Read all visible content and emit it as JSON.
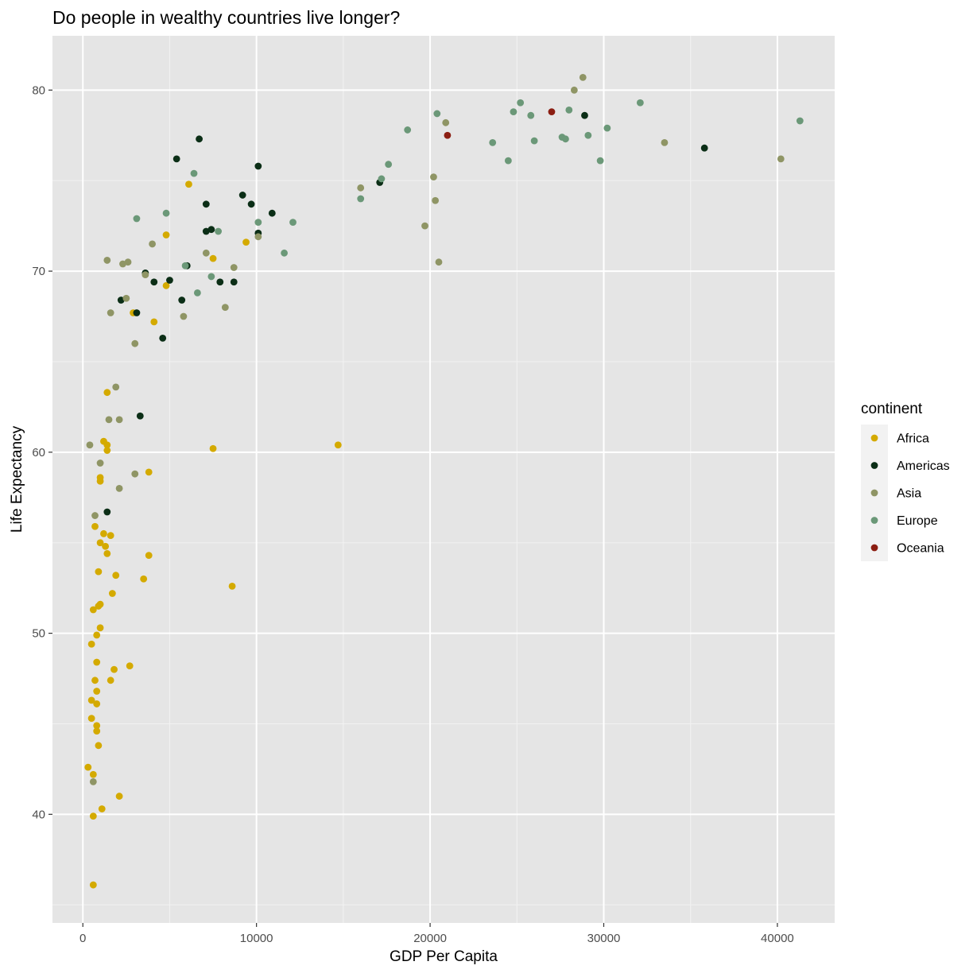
{
  "chart_data": {
    "type": "scatter",
    "title": "Do people in wealthy countries live longer?",
    "xlabel": "GDP Per Capita",
    "ylabel": "Life Expectancy",
    "xlim": [
      -1750,
      43300
    ],
    "ylim": [
      34,
      83
    ],
    "x_ticks": [
      0,
      10000,
      20000,
      30000,
      40000
    ],
    "x_tick_labels": [
      "0",
      "10000",
      "20000",
      "30000",
      "40000"
    ],
    "y_ticks": [
      40,
      50,
      60,
      70,
      80
    ],
    "y_tick_labels": [
      "40",
      "50",
      "60",
      "70",
      "80"
    ],
    "grid": true,
    "legend": {
      "title": "continent",
      "placement": "right"
    },
    "series": [
      {
        "name": "Africa",
        "color": "#d4aa00",
        "points": [
          [
            6100,
            74.8
          ],
          [
            4800,
            72.0
          ],
          [
            9400,
            71.6
          ],
          [
            7500,
            70.7
          ],
          [
            4800,
            69.2
          ],
          [
            2900,
            67.7
          ],
          [
            4100,
            67.2
          ],
          [
            1400,
            63.3
          ],
          [
            14700,
            60.4
          ],
          [
            7500,
            60.2
          ],
          [
            1400,
            60.4
          ],
          [
            1200,
            60.6
          ],
          [
            1400,
            60.1
          ],
          [
            3800,
            58.9
          ],
          [
            1000,
            58.6
          ],
          [
            1000,
            58.4
          ],
          [
            700,
            55.9
          ],
          [
            1200,
            55.5
          ],
          [
            1600,
            55.4
          ],
          [
            1000,
            55.0
          ],
          [
            1300,
            54.8
          ],
          [
            1400,
            54.4
          ],
          [
            3800,
            54.3
          ],
          [
            900,
            53.4
          ],
          [
            1900,
            53.2
          ],
          [
            3500,
            53.0
          ],
          [
            8600,
            52.6
          ],
          [
            1700,
            52.2
          ],
          [
            1000,
            51.6
          ],
          [
            900,
            51.5
          ],
          [
            600,
            51.3
          ],
          [
            1000,
            50.3
          ],
          [
            800,
            49.9
          ],
          [
            500,
            49.4
          ],
          [
            800,
            48.4
          ],
          [
            2700,
            48.2
          ],
          [
            1800,
            48.0
          ],
          [
            700,
            47.4
          ],
          [
            1600,
            47.4
          ],
          [
            800,
            46.8
          ],
          [
            500,
            46.3
          ],
          [
            800,
            46.1
          ],
          [
            500,
            45.3
          ],
          [
            800,
            44.9
          ],
          [
            800,
            44.6
          ],
          [
            900,
            43.8
          ],
          [
            300,
            42.6
          ],
          [
            600,
            42.2
          ],
          [
            2100,
            41.0
          ],
          [
            1100,
            40.3
          ],
          [
            600,
            39.9
          ],
          [
            600,
            36.1
          ]
        ]
      },
      {
        "name": "Americas",
        "color": "#0b2e16",
        "points": [
          [
            6700,
            77.3
          ],
          [
            5400,
            76.2
          ],
          [
            10100,
            75.8
          ],
          [
            7100,
            73.7
          ],
          [
            9200,
            74.2
          ],
          [
            9700,
            73.7
          ],
          [
            10900,
            73.2
          ],
          [
            7400,
            72.3
          ],
          [
            7100,
            72.2
          ],
          [
            10100,
            72.1
          ],
          [
            17100,
            74.9
          ],
          [
            3600,
            69.9
          ],
          [
            5000,
            69.5
          ],
          [
            4100,
            69.4
          ],
          [
            7900,
            69.4
          ],
          [
            8700,
            69.4
          ],
          [
            6000,
            70.3
          ],
          [
            2200,
            68.4
          ],
          [
            5700,
            68.4
          ],
          [
            3100,
            67.7
          ],
          [
            4600,
            66.3
          ],
          [
            3300,
            62.0
          ],
          [
            1400,
            56.7
          ],
          [
            28900,
            78.6
          ],
          [
            35800,
            76.8
          ]
        ]
      },
      {
        "name": "Asia",
        "color": "#8f9565",
        "points": [
          [
            1400,
            70.6
          ],
          [
            2300,
            70.4
          ],
          [
            2600,
            70.5
          ],
          [
            4000,
            71.5
          ],
          [
            7100,
            71.0
          ],
          [
            3600,
            69.8
          ],
          [
            8700,
            70.2
          ],
          [
            2500,
            68.5
          ],
          [
            1600,
            67.7
          ],
          [
            5800,
            67.5
          ],
          [
            8200,
            68.0
          ],
          [
            3000,
            66.0
          ],
          [
            1900,
            63.6
          ],
          [
            1500,
            61.8
          ],
          [
            2100,
            61.8
          ],
          [
            400,
            60.4
          ],
          [
            1000,
            59.4
          ],
          [
            3000,
            58.8
          ],
          [
            2100,
            58.0
          ],
          [
            700,
            56.5
          ],
          [
            600,
            41.8
          ],
          [
            10100,
            71.9
          ],
          [
            16000,
            74.6
          ],
          [
            20200,
            75.2
          ],
          [
            20300,
            73.9
          ],
          [
            19700,
            72.5
          ],
          [
            20500,
            70.5
          ],
          [
            20900,
            78.2
          ],
          [
            28300,
            80.0
          ],
          [
            28800,
            80.7
          ],
          [
            33500,
            77.1
          ],
          [
            40200,
            76.2
          ]
        ]
      },
      {
        "name": "Europe",
        "color": "#6b9878",
        "points": [
          [
            3100,
            72.9
          ],
          [
            4800,
            73.2
          ],
          [
            6400,
            75.4
          ],
          [
            7800,
            72.2
          ],
          [
            10100,
            72.7
          ],
          [
            12100,
            72.7
          ],
          [
            11600,
            71.0
          ],
          [
            5900,
            70.3
          ],
          [
            7400,
            69.7
          ],
          [
            6600,
            68.8
          ],
          [
            16000,
            74.0
          ],
          [
            17200,
            75.1
          ],
          [
            17600,
            75.9
          ],
          [
            18700,
            77.8
          ],
          [
            20400,
            78.7
          ],
          [
            23600,
            77.1
          ],
          [
            24500,
            76.1
          ],
          [
            24800,
            78.8
          ],
          [
            25200,
            79.3
          ],
          [
            25800,
            78.6
          ],
          [
            26000,
            77.2
          ],
          [
            27600,
            77.4
          ],
          [
            27800,
            77.3
          ],
          [
            28000,
            78.9
          ],
          [
            29100,
            77.5
          ],
          [
            29800,
            76.1
          ],
          [
            30200,
            77.9
          ],
          [
            32100,
            79.3
          ],
          [
            41300,
            78.3
          ]
        ]
      },
      {
        "name": "Oceania",
        "color": "#8b1e12",
        "points": [
          [
            27000,
            78.8
          ],
          [
            21000,
            77.5
          ]
        ]
      }
    ]
  }
}
